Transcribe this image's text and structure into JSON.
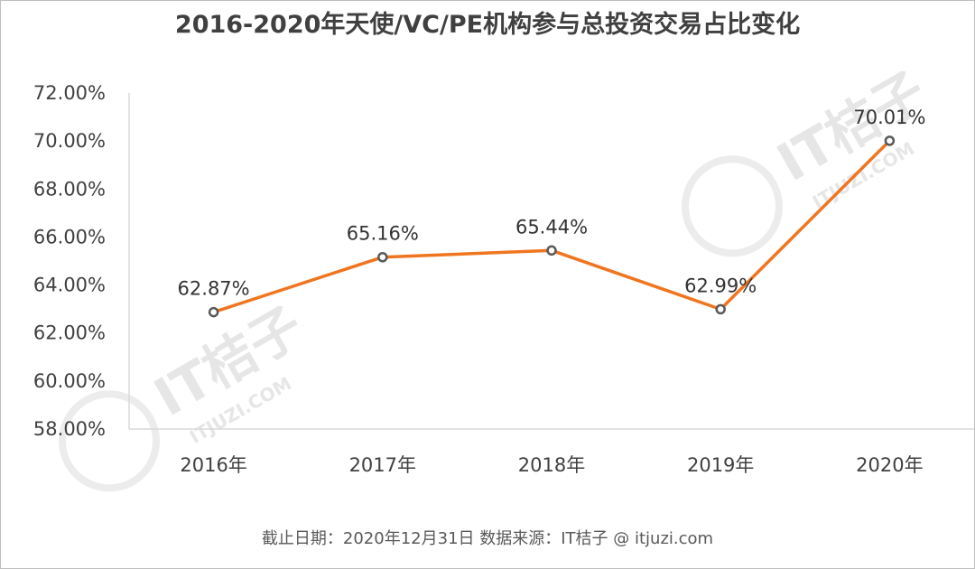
{
  "chart_data": {
    "type": "line",
    "title": "2016-2020年天使/VC/PE机构参与总投资交易占比变化",
    "categories": [
      "2016年",
      "2017年",
      "2018年",
      "2019年",
      "2020年"
    ],
    "values": [
      62.87,
      65.16,
      65.44,
      62.99,
      70.01
    ],
    "data_labels": [
      "62.87%",
      "65.16%",
      "65.44%",
      "62.99%",
      "70.01%"
    ],
    "ylim": [
      58,
      72
    ],
    "ytick_values": [
      58,
      60,
      62,
      64,
      66,
      68,
      70,
      72
    ],
    "ytick_labels": [
      "58.00%",
      "60.00%",
      "62.00%",
      "64.00%",
      "66.00%",
      "68.00%",
      "70.00%",
      "72.00%"
    ],
    "xlabel": "",
    "ylabel": "",
    "grid": false,
    "legend": "none",
    "line_color": "#f07520",
    "marker_color": "#595959"
  },
  "footer": "截止日期：2020年12月31日    数据来源：IT桔子 @ itjuzi.com",
  "watermark": {
    "brand": "IT桔子",
    "domain": "ITJUZI.COM"
  }
}
